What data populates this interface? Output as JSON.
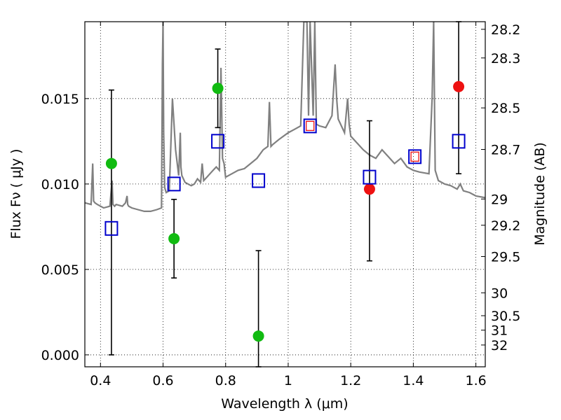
{
  "chart_data": {
    "type": "scatter",
    "xlabel": "Wavelength  λ (μm)",
    "ylabel": "Flux  Fν  ( μJy )",
    "ylabel_right": "Magnitude (AB)",
    "xlim": [
      0.35,
      1.63
    ],
    "ylim": [
      -0.0007,
      0.0195
    ],
    "grid": true,
    "x_ticks": [
      0.4,
      0.6,
      0.8,
      1.0,
      1.2,
      1.4,
      1.6
    ],
    "x_tick_labels": [
      "0.4",
      "0.6",
      "0.8",
      "1",
      "1.2",
      "1.4",
      "1.6"
    ],
    "y_ticks": [
      0.0,
      0.005,
      0.01,
      0.015
    ],
    "y_tick_labels": [
      "0.000",
      "0.005",
      "0.010",
      "0.015"
    ],
    "mag_ticks": [
      28.2,
      28.3,
      28.5,
      28.7,
      29,
      29.2,
      29.5,
      30,
      30.5,
      31,
      32
    ],
    "mag_tick_labels": [
      "28.2",
      "28.3",
      "28.5",
      "28.7",
      "29",
      "29.2",
      "29.5",
      "30",
      "30.5",
      "31",
      "32"
    ],
    "series": [
      {
        "marker": "circle",
        "color": "#11bb11",
        "points": [
          {
            "x": 0.435,
            "y": 0.0112,
            "ylo": 0.0,
            "yhi": 0.0155
          },
          {
            "x": 0.635,
            "y": 0.0068,
            "ylo": 0.0045,
            "yhi": 0.0091
          },
          {
            "x": 0.775,
            "y": 0.0156,
            "ylo": 0.0133,
            "yhi": 0.0179
          },
          {
            "x": 0.905,
            "y": 0.0011,
            "ylo": -0.0007,
            "yhi": 0.0061
          }
        ]
      },
      {
        "marker": "circle",
        "color": "#ee1111",
        "points": [
          {
            "x": 1.26,
            "y": 0.0097,
            "ylo": 0.0055,
            "yhi": 0.0137
          },
          {
            "x": 1.545,
            "y": 0.0157,
            "ylo": 0.0106,
            "yhi": 0.0195
          }
        ]
      },
      {
        "marker": "square-open",
        "color": "#0000cc",
        "points": [
          {
            "x": 0.435,
            "y": 0.0074
          },
          {
            "x": 0.635,
            "y": 0.01
          },
          {
            "x": 0.775,
            "y": 0.0125
          },
          {
            "x": 0.905,
            "y": 0.0102
          },
          {
            "x": 1.07,
            "y": 0.0134
          },
          {
            "x": 1.26,
            "y": 0.0104
          },
          {
            "x": 1.405,
            "y": 0.0116
          },
          {
            "x": 1.545,
            "y": 0.0125
          }
        ]
      },
      {
        "marker": "square-open-small",
        "color": "#ee1111",
        "points": [
          {
            "x": 1.07,
            "y": 0.0134
          },
          {
            "x": 1.405,
            "y": 0.0116
          }
        ]
      }
    ],
    "model_spectrum": {
      "color": "#808080",
      "x": [
        0.35,
        0.37,
        0.375,
        0.378,
        0.382,
        0.39,
        0.41,
        0.43,
        0.437,
        0.44,
        0.445,
        0.45,
        0.47,
        0.48,
        0.485,
        0.487,
        0.49,
        0.5,
        0.52,
        0.54,
        0.56,
        0.58,
        0.595,
        0.598,
        0.6,
        0.602,
        0.605,
        0.61,
        0.62,
        0.63,
        0.64,
        0.65,
        0.655,
        0.657,
        0.66,
        0.67,
        0.68,
        0.69,
        0.7,
        0.71,
        0.72,
        0.725,
        0.73,
        0.74,
        0.75,
        0.76,
        0.77,
        0.78,
        0.785,
        0.79,
        0.795,
        0.8,
        0.82,
        0.84,
        0.86,
        0.88,
        0.9,
        0.92,
        0.935,
        0.94,
        0.945,
        0.95,
        0.97,
        1.0,
        1.02,
        1.04,
        1.05,
        1.06,
        1.065,
        1.07,
        1.08,
        1.085,
        1.09,
        1.1,
        1.12,
        1.14,
        1.15,
        1.155,
        1.16,
        1.18,
        1.19,
        1.195,
        1.2,
        1.22,
        1.24,
        1.26,
        1.28,
        1.3,
        1.32,
        1.34,
        1.36,
        1.38,
        1.4,
        1.42,
        1.45,
        1.46,
        1.465,
        1.47,
        1.48,
        1.5,
        1.52,
        1.54,
        1.55,
        1.56,
        1.58,
        1.6,
        1.63
      ],
      "y": [
        0.0089,
        0.0088,
        0.0112,
        0.009,
        0.0089,
        0.0088,
        0.0086,
        0.0087,
        0.0102,
        0.0088,
        0.0087,
        0.0088,
        0.0087,
        0.0089,
        0.0093,
        0.0088,
        0.0087,
        0.0086,
        0.0085,
        0.0084,
        0.0084,
        0.0085,
        0.0086,
        0.017,
        0.0195,
        0.013,
        0.0098,
        0.0095,
        0.0096,
        0.015,
        0.012,
        0.0105,
        0.013,
        0.011,
        0.0105,
        0.0101,
        0.01,
        0.0099,
        0.01,
        0.0103,
        0.0101,
        0.0112,
        0.0102,
        0.0104,
        0.0106,
        0.0108,
        0.011,
        0.0108,
        0.0168,
        0.0115,
        0.0112,
        0.0104,
        0.0106,
        0.0108,
        0.0109,
        0.0112,
        0.0115,
        0.012,
        0.0122,
        0.0148,
        0.0122,
        0.0123,
        0.0126,
        0.013,
        0.0132,
        0.0134,
        0.0195,
        0.0195,
        0.014,
        0.0195,
        0.014,
        0.0195,
        0.0135,
        0.0134,
        0.0133,
        0.014,
        0.017,
        0.015,
        0.0138,
        0.013,
        0.015,
        0.0135,
        0.0128,
        0.0124,
        0.012,
        0.0117,
        0.0115,
        0.012,
        0.0116,
        0.0112,
        0.0115,
        0.011,
        0.0108,
        0.0107,
        0.0106,
        0.015,
        0.0195,
        0.0108,
        0.0102,
        0.01,
        0.0099,
        0.0097,
        0.01,
        0.0096,
        0.0095,
        0.0093,
        0.0092
      ]
    }
  }
}
